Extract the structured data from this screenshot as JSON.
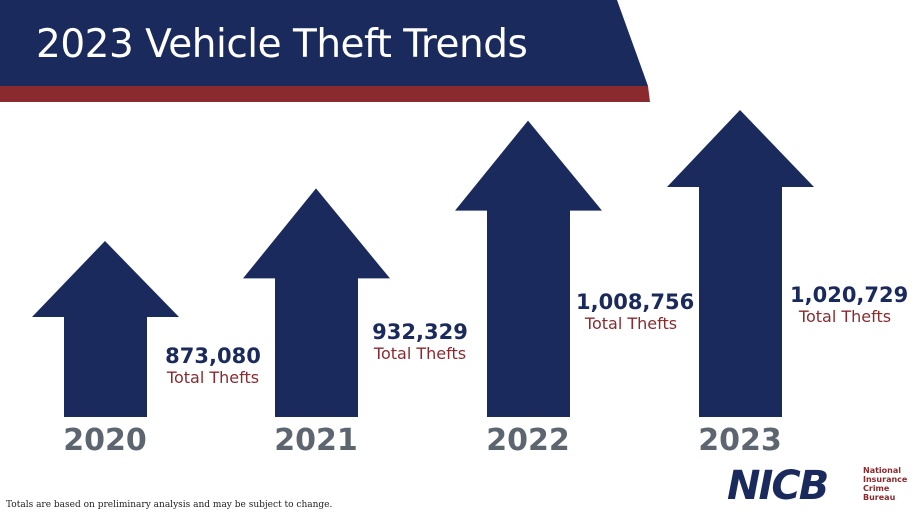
{
  "title": "2023 Vehicle Theft Trends",
  "footnote": "Totals are based on preliminary analysis and may be subject to change.",
  "logo": {
    "text": "NICB",
    "subtitle": [
      "National",
      "Insurance",
      "Crime",
      "Bureau"
    ]
  },
  "colors": {
    "navy": "#1b2a5c",
    "red": "#8a2a2e",
    "year": "#5d6670"
  },
  "chart_data": {
    "type": "bar",
    "title": "2023 Vehicle Theft Trends",
    "categories": [
      "2020",
      "2021",
      "2022",
      "2023"
    ],
    "values": [
      873080,
      932329,
      1008756,
      1020729
    ],
    "value_labels": [
      "873,080",
      "932,329",
      "1,008,756",
      "1,020,729"
    ],
    "unit_label": "Total Thefts",
    "mark": "arrow"
  }
}
